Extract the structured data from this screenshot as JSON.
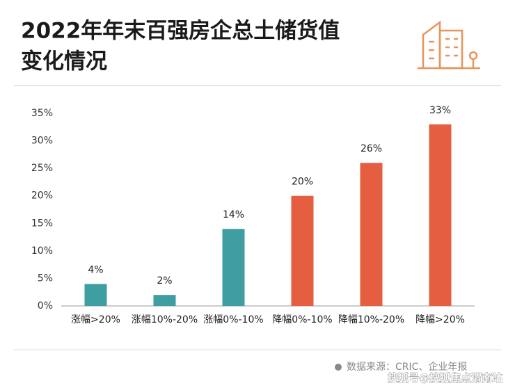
{
  "chart_data": {
    "type": "bar",
    "title": [
      "2022年年末百强房企总土储货值",
      "变化情况"
    ],
    "categories": [
      "涨幅>20%",
      "涨幅10%-20%",
      "涨幅0%-10%",
      "降幅0%-10%",
      "降幅10%-20%",
      "降幅>20%"
    ],
    "values": [
      4,
      2,
      14,
      20,
      26,
      33
    ],
    "value_labels": [
      "4%",
      "2%",
      "14%",
      "20%",
      "26%",
      "33%"
    ],
    "colors": [
      "#3f9ea2",
      "#3f9ea2",
      "#3f9ea2",
      "#e55e3f",
      "#e55e3f",
      "#e55e3f"
    ],
    "ylim": [
      0,
      35
    ],
    "yticks": [
      {
        "value": 0,
        "label": "0%"
      },
      {
        "value": 5,
        "label": "5%"
      },
      {
        "value": 10,
        "label": "10%"
      },
      {
        "value": 15,
        "label": "15%"
      },
      {
        "value": 20,
        "label": "20%"
      },
      {
        "value": 25,
        "label": "25%"
      },
      {
        "value": 30,
        "label": "30%"
      },
      {
        "value": 35,
        "label": "35%"
      }
    ],
    "grid": false,
    "source": "数据来源：CRIC、企业年报",
    "watermark": "搜狐号@搜狐焦点渭南站"
  }
}
